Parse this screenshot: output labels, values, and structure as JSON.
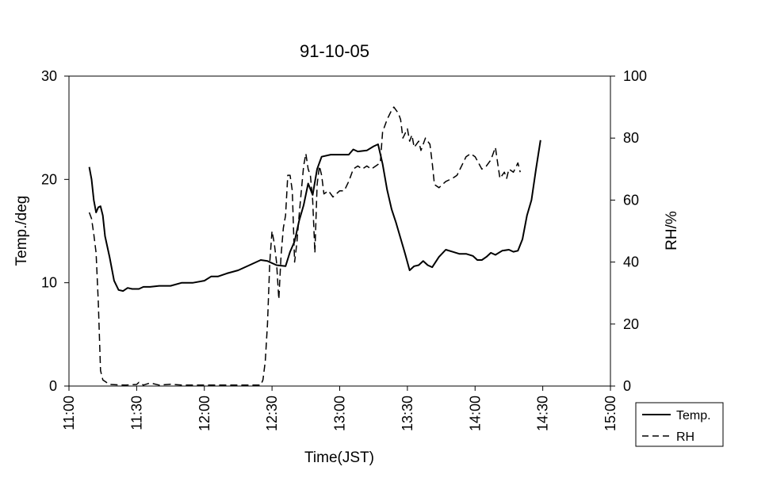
{
  "chart_data": {
    "type": "line",
    "title": "91-10-05",
    "xlabel": "Time(JST)",
    "ylabel_left": "Temp./deg",
    "ylabel_right": "RH/%",
    "x_ticks": [
      "11:00",
      "11:30",
      "12:00",
      "12:30",
      "13:00",
      "13:30",
      "14:00",
      "14:30",
      "15:00"
    ],
    "y_left_ticks": [
      "0",
      "10",
      "20",
      "30"
    ],
    "y_right_ticks": [
      "0",
      "20",
      "40",
      "60",
      "80",
      "100"
    ],
    "xlim": [
      "11:00",
      "15:00"
    ],
    "ylim_left": [
      0,
      30
    ],
    "ylim_right": [
      0,
      100
    ],
    "grid": false,
    "legend_position": "bottom-right outside",
    "series": [
      {
        "name": "Temp.",
        "axis": "left",
        "style": "solid",
        "color": "#000000",
        "points": [
          [
            "11:09",
            21.2
          ],
          [
            "11:10",
            20.0
          ],
          [
            "11:11",
            18.0
          ],
          [
            "11:12",
            16.8
          ],
          [
            "11:13",
            17.3
          ],
          [
            "11:14",
            17.4
          ],
          [
            "11:15",
            16.5
          ],
          [
            "11:16",
            14.5
          ],
          [
            "11:18",
            12.5
          ],
          [
            "11:20",
            10.2
          ],
          [
            "11:22",
            9.3
          ],
          [
            "11:24",
            9.2
          ],
          [
            "11:26",
            9.5
          ],
          [
            "11:28",
            9.4
          ],
          [
            "11:31",
            9.4
          ],
          [
            "11:33",
            9.6
          ],
          [
            "11:36",
            9.6
          ],
          [
            "11:40",
            9.7
          ],
          [
            "11:45",
            9.7
          ],
          [
            "11:50",
            10.0
          ],
          [
            "11:55",
            10.0
          ],
          [
            "12:00",
            10.2
          ],
          [
            "12:03",
            10.6
          ],
          [
            "12:06",
            10.6
          ],
          [
            "12:10",
            10.9
          ],
          [
            "12:15",
            11.2
          ],
          [
            "12:20",
            11.7
          ],
          [
            "12:25",
            12.2
          ],
          [
            "12:28",
            12.1
          ],
          [
            "12:32",
            11.7
          ],
          [
            "12:36",
            11.6
          ],
          [
            "12:38",
            13.0
          ],
          [
            "12:40",
            14.0
          ],
          [
            "12:42",
            16.0
          ],
          [
            "12:44",
            17.5
          ],
          [
            "12:46",
            19.6
          ],
          [
            "12:48",
            18.5
          ],
          [
            "12:50",
            21.0
          ],
          [
            "12:52",
            22.2
          ],
          [
            "12:56",
            22.4
          ],
          [
            "13:00",
            22.4
          ],
          [
            "13:04",
            22.4
          ],
          [
            "13:06",
            22.9
          ],
          [
            "13:08",
            22.7
          ],
          [
            "13:12",
            22.8
          ],
          [
            "13:15",
            23.2
          ],
          [
            "13:17",
            23.4
          ],
          [
            "13:19",
            21.5
          ],
          [
            "13:21",
            19.0
          ],
          [
            "13:23",
            17.1
          ],
          [
            "13:25",
            15.8
          ],
          [
            "13:27",
            14.3
          ],
          [
            "13:29",
            12.8
          ],
          [
            "13:31",
            11.2
          ],
          [
            "13:33",
            11.6
          ],
          [
            "13:35",
            11.7
          ],
          [
            "13:37",
            12.1
          ],
          [
            "13:39",
            11.7
          ],
          [
            "13:41",
            11.5
          ],
          [
            "13:44",
            12.5
          ],
          [
            "13:47",
            13.2
          ],
          [
            "13:50",
            13.0
          ],
          [
            "13:53",
            12.8
          ],
          [
            "13:56",
            12.8
          ],
          [
            "13:59",
            12.6
          ],
          [
            "14:01",
            12.2
          ],
          [
            "14:03",
            12.2
          ],
          [
            "14:05",
            12.5
          ],
          [
            "14:07",
            12.9
          ],
          [
            "14:09",
            12.7
          ],
          [
            "14:12",
            13.1
          ],
          [
            "14:15",
            13.2
          ],
          [
            "14:17",
            13.0
          ],
          [
            "14:19",
            13.1
          ],
          [
            "14:21",
            14.2
          ],
          [
            "14:23",
            16.5
          ],
          [
            "14:25",
            18.0
          ],
          [
            "14:27",
            21.0
          ],
          [
            "14:29",
            23.8
          ]
        ]
      },
      {
        "name": "RH",
        "axis": "right",
        "style": "dashed",
        "color": "#000000",
        "points": [
          [
            "11:09",
            56
          ],
          [
            "11:10",
            54
          ],
          [
            "11:11",
            49
          ],
          [
            "11:12",
            43
          ],
          [
            "11:13",
            27
          ],
          [
            "11:14",
            5
          ],
          [
            "11:15",
            2
          ],
          [
            "11:18",
            0.5
          ],
          [
            "11:21",
            0.4
          ],
          [
            "11:25",
            0.3
          ],
          [
            "11:30",
            0.5
          ],
          [
            "11:31",
            1.2
          ],
          [
            "11:33",
            0.3
          ],
          [
            "11:36",
            1.0
          ],
          [
            "11:40",
            0.3
          ],
          [
            "11:45",
            0.6
          ],
          [
            "11:50",
            0.3
          ],
          [
            "12:25",
            0.3
          ],
          [
            "12:26",
            2
          ],
          [
            "12:27",
            8
          ],
          [
            "12:28",
            20
          ],
          [
            "12:29",
            40
          ],
          [
            "12:30",
            50
          ],
          [
            "12:31",
            46
          ],
          [
            "12:32",
            40
          ],
          [
            "12:33",
            28
          ],
          [
            "12:34",
            42
          ],
          [
            "12:35",
            51
          ],
          [
            "12:36",
            55
          ],
          [
            "12:37",
            68
          ],
          [
            "12:38",
            68
          ],
          [
            "12:39",
            63
          ],
          [
            "12:40",
            40
          ],
          [
            "12:41",
            46
          ],
          [
            "12:42",
            55
          ],
          [
            "12:43",
            63
          ],
          [
            "12:44",
            71
          ],
          [
            "12:45",
            75
          ],
          [
            "12:46",
            70
          ],
          [
            "12:47",
            68
          ],
          [
            "12:48",
            60
          ],
          [
            "12:49",
            43
          ],
          [
            "12:50",
            65
          ],
          [
            "12:51",
            71
          ],
          [
            "12:52",
            68
          ],
          [
            "12:53",
            62
          ],
          [
            "12:55",
            63
          ],
          [
            "12:57",
            61
          ],
          [
            "13:00",
            63
          ],
          [
            "13:02",
            63
          ],
          [
            "13:04",
            66
          ],
          [
            "13:06",
            70
          ],
          [
            "13:08",
            71
          ],
          [
            "13:10",
            70
          ],
          [
            "13:12",
            71
          ],
          [
            "13:14",
            70
          ],
          [
            "13:16",
            71
          ],
          [
            "13:18",
            72
          ],
          [
            "13:19",
            82
          ],
          [
            "13:21",
            86
          ],
          [
            "13:23",
            89
          ],
          [
            "13:24",
            90
          ],
          [
            "13:26",
            88
          ],
          [
            "13:27",
            86
          ],
          [
            "13:28",
            80
          ],
          [
            "13:30",
            83
          ],
          [
            "13:31",
            79
          ],
          [
            "13:32",
            81
          ],
          [
            "13:33",
            77
          ],
          [
            "13:35",
            79
          ],
          [
            "13:36",
            76
          ],
          [
            "13:38",
            80
          ],
          [
            "13:40",
            78
          ],
          [
            "13:41",
            72
          ],
          [
            "13:42",
            65
          ],
          [
            "13:44",
            64
          ],
          [
            "13:47",
            66
          ],
          [
            "13:50",
            67
          ],
          [
            "13:52",
            68
          ],
          [
            "13:54",
            71
          ],
          [
            "13:56",
            74
          ],
          [
            "13:58",
            75
          ],
          [
            "14:00",
            74
          ],
          [
            "14:03",
            70
          ],
          [
            "14:05",
            71
          ],
          [
            "14:07",
            73
          ],
          [
            "14:09",
            77
          ],
          [
            "14:10",
            72
          ],
          [
            "14:11",
            67
          ],
          [
            "14:13",
            69
          ],
          [
            "14:14",
            67
          ],
          [
            "14:15",
            70
          ],
          [
            "14:17",
            69
          ],
          [
            "14:19",
            72
          ],
          [
            "14:20",
            69
          ]
        ]
      }
    ]
  }
}
